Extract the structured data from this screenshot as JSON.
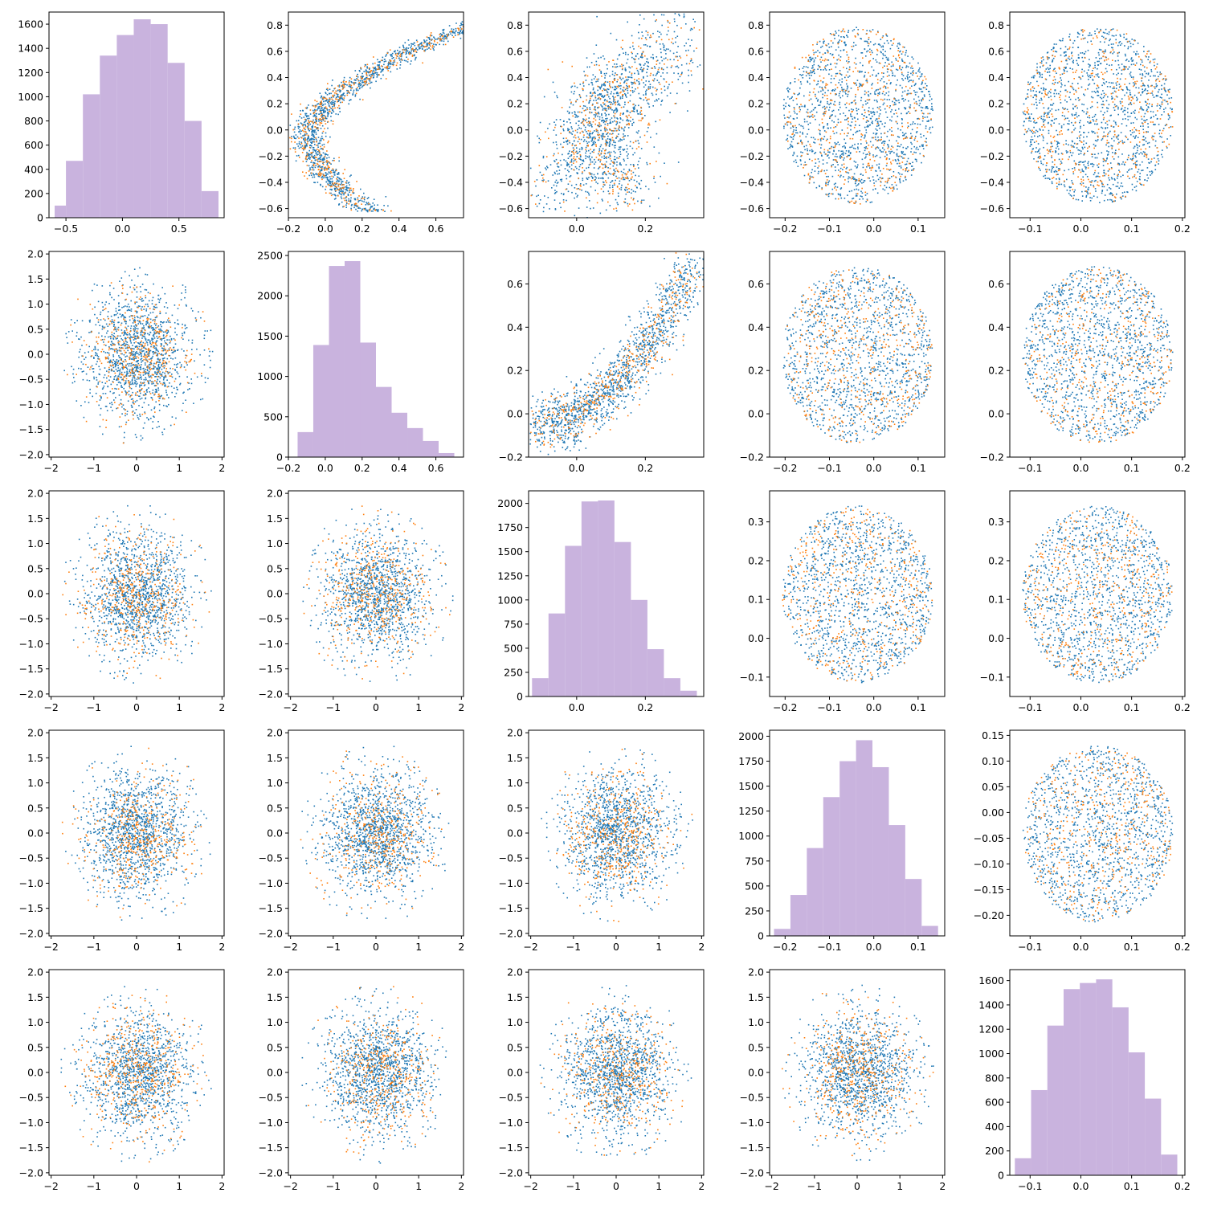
{
  "colors": {
    "blue": "#1f77b4",
    "orange": "#ff7f0e",
    "hist": "#c9b3de"
  },
  "chart_data": {
    "type": "pairplot",
    "title": "",
    "grid": false,
    "legend": "none",
    "variables": [
      {
        "range": [
          -0.65,
          0.9
        ],
        "ticks": [
          -0.5,
          0.0,
          0.5
        ],
        "labels": [
          "−0.5",
          "0.0",
          "0.5"
        ]
      },
      {
        "range": [
          -0.2,
          0.75
        ],
        "ticks": [
          -0.2,
          0.0,
          0.2,
          0.4,
          0.6
        ],
        "labels": [
          "−0.2",
          "0.0",
          "0.2",
          "0.4",
          "0.6"
        ]
      },
      {
        "range": [
          -0.14,
          0.37
        ],
        "ticks": [
          0.0,
          0.2
        ],
        "labels": [
          "0.0",
          "0.2"
        ]
      },
      {
        "range": [
          -0.235,
          0.16
        ],
        "ticks": [
          -0.2,
          -0.1,
          0.0,
          0.1
        ],
        "labels": [
          "−0.2",
          "−0.1",
          "0.0",
          "0.1"
        ]
      },
      {
        "range": [
          -0.14,
          0.205
        ],
        "ticks": [
          -0.1,
          0.0,
          0.1,
          0.2
        ],
        "labels": [
          "−0.1",
          "0.0",
          "0.1",
          "0.2"
        ]
      }
    ],
    "rows": [
      {
        "type": "y_range",
        "range": [
          -0.67,
          0.9
        ],
        "ticks": [
          -0.6,
          -0.4,
          -0.2,
          0.0,
          0.2,
          0.4,
          0.6,
          0.8
        ],
        "labels": [
          "−0.6",
          "−0.4",
          "−0.2",
          "0.0",
          "0.2",
          "0.4",
          "0.6",
          "0.8"
        ]
      },
      {
        "type": "y_range",
        "range": [
          -0.2,
          0.75
        ],
        "ticks": [
          -0.2,
          0.0,
          0.2,
          0.4,
          0.6
        ],
        "labels": [
          "−0.2",
          "0.0",
          "0.2",
          "0.4",
          "0.6"
        ]
      },
      {
        "type": "y_range",
        "range": [
          -0.15,
          0.38
        ],
        "ticks": [
          -0.1,
          0.0,
          0.1,
          0.2,
          0.3
        ],
        "labels": [
          "−0.1",
          "0.0",
          "0.1",
          "0.2",
          "0.3"
        ]
      },
      {
        "type": "y_range",
        "range": [
          -0.24,
          0.16
        ],
        "ticks": [
          -0.2,
          -0.15,
          -0.1,
          -0.05,
          0.0,
          0.05,
          0.1,
          0.15
        ],
        "labels": [
          "−0.20",
          "−0.15",
          "−0.10",
          "−0.05",
          "0.00",
          "0.05",
          "0.10",
          "0.15"
        ]
      },
      {
        "type": "y_range",
        "range": [
          -2.05,
          2.05
        ],
        "ticks": [
          -2.0,
          -1.5,
          -1.0,
          -0.5,
          0.0,
          0.5,
          1.0,
          1.5,
          2.0
        ],
        "labels": [
          "−2.0",
          "−1.5",
          "−1.0",
          "−0.5",
          "0.0",
          "0.5",
          "1.0",
          "1.5",
          "2.0"
        ]
      }
    ],
    "std_range": [
      -2.05,
      2.05
    ],
    "std_yticks": [
      -2.0,
      -1.5,
      -1.0,
      -0.5,
      0.0,
      0.5,
      1.0,
      1.5,
      2.0
    ],
    "std_ylabels": [
      "−2.0",
      "−1.5",
      "−1.0",
      "−0.5",
      "0.0",
      "0.5",
      "1.0",
      "1.5",
      "2.0"
    ],
    "std_xticks": [
      -2,
      -1,
      0,
      1,
      2
    ],
    "std_xlabels": [
      "−2",
      "−1",
      "0",
      "1",
      "2"
    ],
    "histograms": [
      {
        "edges": [
          -0.6,
          -0.5,
          -0.35,
          -0.2,
          -0.05,
          0.1,
          0.25,
          0.4,
          0.55,
          0.7,
          0.85
        ],
        "counts": [
          100,
          470,
          1020,
          1340,
          1510,
          1640,
          1600,
          1280,
          800,
          220
        ],
        "ylim": [
          0,
          1700
        ],
        "yticks": [
          0,
          200,
          400,
          600,
          800,
          1000,
          1200,
          1400,
          1600
        ],
        "ylabels": [
          "0",
          "200",
          "400",
          "600",
          "800",
          "1000",
          "1200",
          "1400",
          "1600"
        ]
      },
      {
        "edges": [
          -0.15,
          -0.065,
          0.02,
          0.105,
          0.19,
          0.275,
          0.36,
          0.445,
          0.53,
          0.615,
          0.7
        ],
        "counts": [
          310,
          1390,
          2370,
          2430,
          1420,
          870,
          550,
          360,
          200,
          50
        ],
        "ylim": [
          0,
          2550
        ],
        "yticks": [
          0,
          500,
          1000,
          1500,
          2000,
          2500
        ],
        "ylabels": [
          "0",
          "500",
          "1000",
          "1500",
          "2000",
          "2500"
        ]
      },
      {
        "edges": [
          -0.13,
          -0.082,
          -0.034,
          0.014,
          0.062,
          0.11,
          0.158,
          0.206,
          0.254,
          0.302,
          0.35
        ],
        "counts": [
          190,
          860,
          1560,
          2020,
          2030,
          1600,
          1000,
          490,
          190,
          60
        ],
        "ylim": [
          0,
          2130
        ],
        "yticks": [
          0,
          250,
          500,
          750,
          1000,
          1250,
          1500,
          1750,
          2000
        ],
        "ylabels": [
          "0",
          "250",
          "500",
          "750",
          "1000",
          "1250",
          "1500",
          "1750",
          "2000"
        ]
      },
      {
        "edges": [
          -0.225,
          -0.188,
          -0.151,
          -0.114,
          -0.077,
          -0.04,
          -0.003,
          0.034,
          0.071,
          0.108,
          0.145
        ],
        "counts": [
          70,
          410,
          880,
          1390,
          1750,
          1960,
          1690,
          1110,
          570,
          100
        ],
        "ylim": [
          0,
          2060
        ],
        "yticks": [
          0,
          250,
          500,
          750,
          1000,
          1250,
          1500,
          1750,
          2000
        ],
        "ylabels": [
          "0",
          "250",
          "500",
          "750",
          "1000",
          "1250",
          "1500",
          "1750",
          "2000"
        ]
      },
      {
        "edges": [
          -0.13,
          -0.098,
          -0.066,
          -0.034,
          -0.002,
          0.03,
          0.062,
          0.094,
          0.126,
          0.158,
          0.19
        ],
        "counts": [
          140,
          700,
          1230,
          1530,
          1580,
          1610,
          1380,
          1010,
          630,
          170
        ],
        "ylim": [
          0,
          1690
        ],
        "yticks": [
          0,
          200,
          400,
          600,
          800,
          1000,
          1200,
          1400,
          1600
        ],
        "ylabels": [
          "0",
          "200",
          "400",
          "600",
          "800",
          "1000",
          "1200",
          "1400",
          "1600"
        ]
      }
    ],
    "scatter_series": [
      {
        "color": "blue",
        "share": 0.75
      },
      {
        "color": "orange",
        "share": 0.25
      }
    ]
  }
}
